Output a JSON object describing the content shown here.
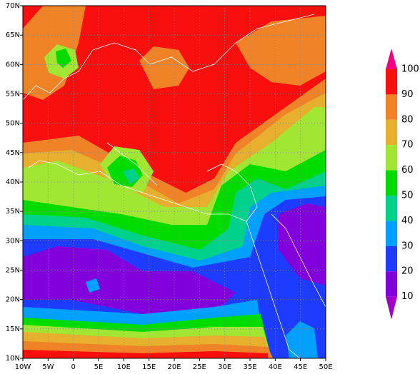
{
  "map": {
    "x_labels": [
      "10W",
      "5W",
      "0",
      "5E",
      "10E",
      "15E",
      "20E",
      "25E",
      "30E",
      "35E",
      "40E",
      "45E",
      "50E"
    ],
    "y_labels": [
      "70N",
      "65N",
      "60N",
      "55N",
      "50N",
      "45N",
      "40N",
      "35N",
      "30N",
      "25N",
      "20N",
      "15N",
      "10N"
    ],
    "colorbar": {
      "labels": [
        100,
        90,
        80,
        70,
        60,
        50,
        40,
        30,
        20,
        10
      ],
      "colors": [
        "#f00082",
        "#fa0f0f",
        "#f08228",
        "#e6af2d",
        "#a0e632",
        "#00dc00",
        "#00d28c",
        "#00a0ff",
        "#1e3cff",
        "#8200dc",
        "#a000c8"
      ]
    }
  }
}
